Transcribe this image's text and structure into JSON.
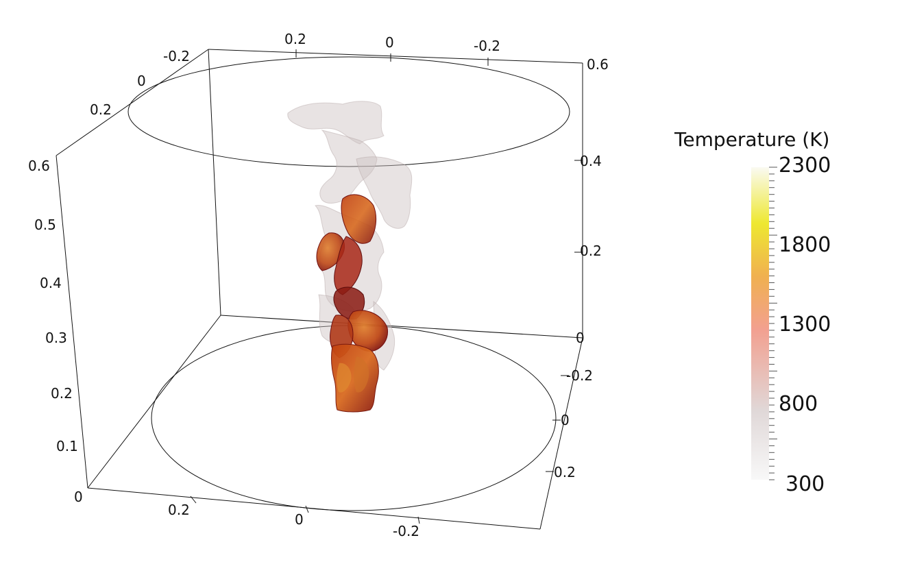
{
  "colorbar": {
    "title": "Temperature (K)",
    "labels": [
      "2300",
      "1800",
      "1300",
      "800",
      "300"
    ],
    "colors": [
      "#fafaf2",
      "#eee830",
      "#f0b050",
      "#f2a090",
      "#e0d8d8",
      "#f8f8f8"
    ]
  },
  "axes": {
    "top_x": [
      "0.2",
      "0",
      "-0.2"
    ],
    "top_left": [
      "-0.2",
      "0",
      "0.2"
    ],
    "right_z": [
      "0.6",
      "0.4",
      "0.2",
      "0"
    ],
    "right_y": [
      "-0.2",
      "0",
      "0.2"
    ],
    "left_z": [
      "0.6",
      "0.5",
      "0.4",
      "0.3",
      "0.2",
      "0.1",
      "0"
    ],
    "bottom_x": [
      "0.2",
      "0",
      "-0.2"
    ]
  }
}
